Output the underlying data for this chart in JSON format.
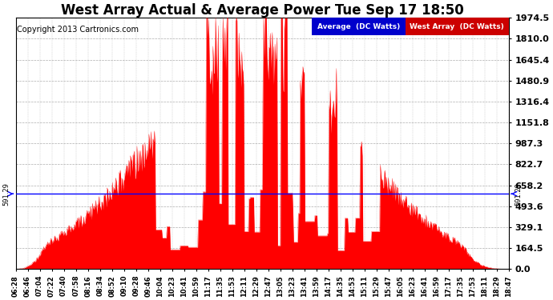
{
  "title": "West Array Actual & Average Power Tue Sep 17 18:50",
  "copyright": "Copyright 2013 Cartronics.com",
  "average_value": 591.29,
  "y_max": 1974.5,
  "yticks": [
    0.0,
    164.5,
    329.1,
    493.6,
    658.2,
    822.7,
    987.3,
    1151.8,
    1316.4,
    1480.9,
    1645.4,
    1810.0,
    1974.5
  ],
  "avg_line_color": "#0000FF",
  "fill_color": "#FF0000",
  "background_color": "#FFFFFF",
  "grid_color": "#999999",
  "legend_avg_bg": "#0000CC",
  "legend_west_bg": "#CC0000",
  "legend_avg_text": "Average  (DC Watts)",
  "legend_west_text": "West Array  (DC Watts)",
  "title_fontsize": 12,
  "copyright_fontsize": 7,
  "tick_fontsize": 6,
  "yticklabel_fontsize": 8,
  "avg_annotation": "591.29",
  "x_tick_labels": [
    "06:28",
    "06:46",
    "07:04",
    "07:22",
    "07:40",
    "07:58",
    "08:16",
    "08:34",
    "08:52",
    "09:10",
    "09:28",
    "09:46",
    "10:04",
    "10:23",
    "10:41",
    "10:59",
    "11:17",
    "11:35",
    "11:53",
    "12:11",
    "12:29",
    "12:47",
    "13:05",
    "13:23",
    "13:41",
    "13:59",
    "14:17",
    "14:35",
    "14:53",
    "15:11",
    "15:29",
    "15:47",
    "16:05",
    "16:23",
    "16:41",
    "16:59",
    "17:17",
    "17:35",
    "17:53",
    "18:11",
    "18:29",
    "18:47"
  ]
}
